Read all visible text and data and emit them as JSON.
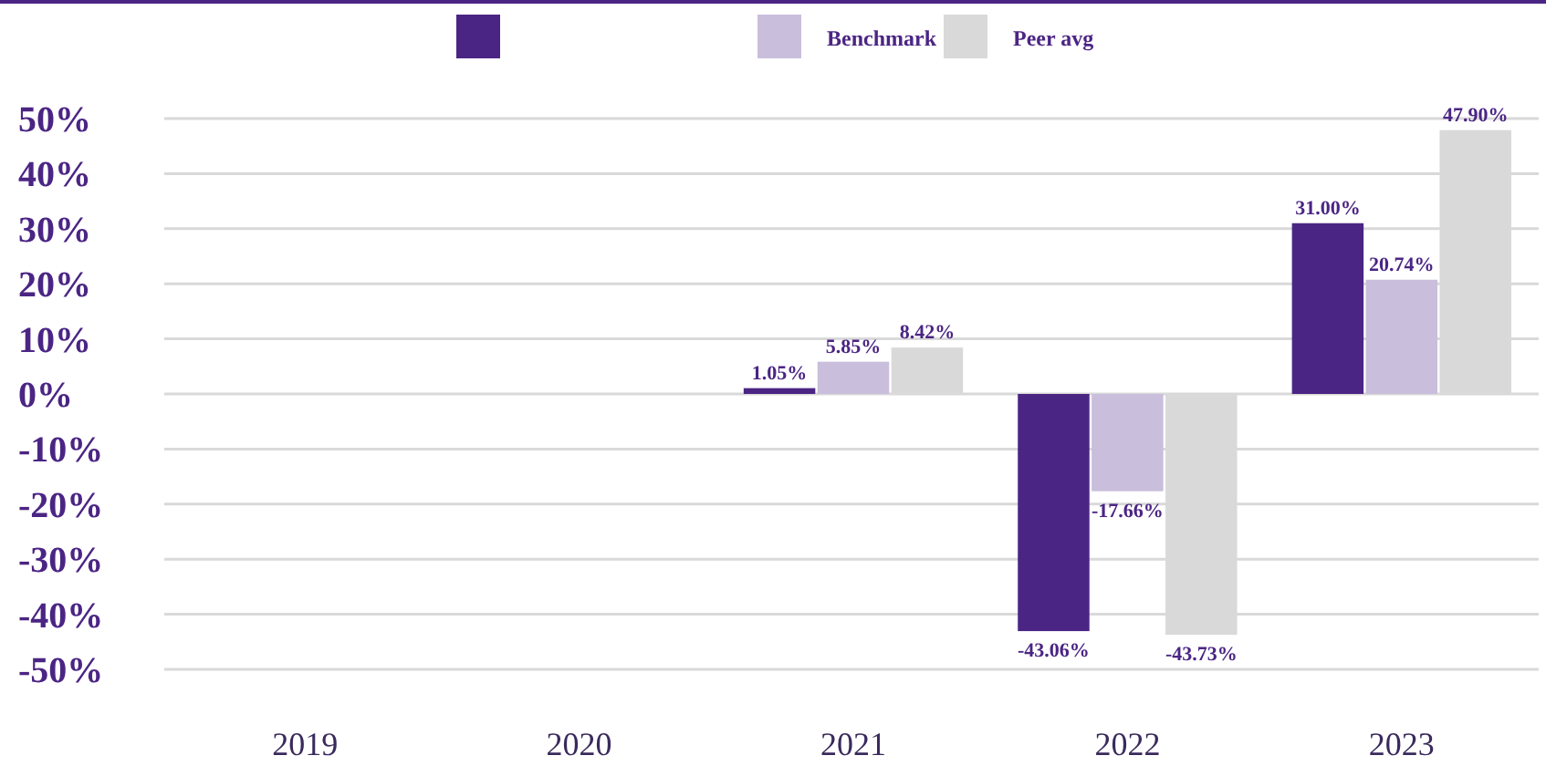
{
  "chart_data": {
    "type": "bar",
    "categories": [
      "2019",
      "2020",
      "2021",
      "2022",
      "2023"
    ],
    "series": [
      {
        "color": "#4b2584",
        "values": [
          null,
          null,
          1.05,
          -43.06,
          31.0
        ],
        "value_labels": [
          null,
          null,
          "1.05%",
          "-43.06%",
          "31.00%"
        ]
      },
      {
        "name": "Benchmark",
        "color": "#c9bedb",
        "values": [
          null,
          null,
          5.85,
          -17.66,
          20.74
        ],
        "value_labels": [
          null,
          null,
          "5.85%",
          "-17.66%",
          "20.74%"
        ]
      },
      {
        "name": "Peer avg",
        "color": "#d9d9d9",
        "values": [
          null,
          null,
          8.42,
          -43.73,
          47.9
        ],
        "value_labels": [
          null,
          null,
          "8.42%",
          "-43.73%",
          "47.90%"
        ]
      }
    ],
    "ylim": [
      -50,
      50
    ],
    "yticks": [
      {
        "value": 50,
        "label": "50%"
      },
      {
        "value": 40,
        "label": "40%"
      },
      {
        "value": 30,
        "label": "30%"
      },
      {
        "value": 20,
        "label": "20%"
      },
      {
        "value": 10,
        "label": "10%"
      },
      {
        "value": 0,
        "label": "0%"
      },
      {
        "value": -10,
        "label": "-10%"
      },
      {
        "value": -20,
        "label": "-20%"
      },
      {
        "value": -30,
        "label": "-30%"
      },
      {
        "value": -40,
        "label": "-40%"
      },
      {
        "value": -50,
        "label": "-50%"
      }
    ],
    "grid": "y",
    "legend": "top"
  }
}
